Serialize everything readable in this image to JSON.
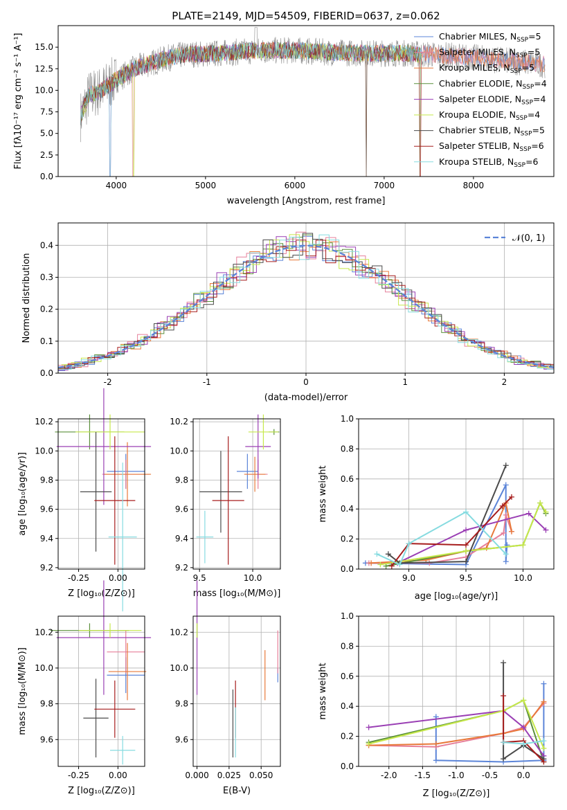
{
  "colors": [
    "#5b84d8",
    "#e67f9a",
    "#e8793a",
    "#5a8f3a",
    "#9a3fb4",
    "#c6e84a",
    "#4a4a4a",
    "#a61c1c",
    "#86dbe0"
  ],
  "chart_data": [
    {
      "id": "spectrum",
      "type": "line",
      "title": "PLATE=2149, MJD=54509, FIBERID=0637, z=0.062",
      "xlabel": "wavelength [Angstrom, rest frame]",
      "ylabel": "Flux [fλ10⁻¹⁷ erg cm⁻² s⁻¹ A⁻¹]",
      "xlim": [
        3350,
        8900
      ],
      "ylim": [
        0,
        17.5
      ],
      "xticks": [
        4000,
        5000,
        6000,
        7000,
        8000
      ],
      "yticks": [
        0.0,
        2.5,
        5.0,
        7.5,
        10.0,
        12.5,
        15.0
      ],
      "legend": "right",
      "continuum": {
        "x": [
          3600,
          3700,
          3800,
          3900,
          4000,
          4200,
          4400,
          4600,
          4800,
          5000,
          5300,
          5600,
          6000,
          6400,
          6800,
          7200,
          7600,
          8000,
          8400,
          8800
        ],
        "y": [
          7.0,
          9.5,
          9.8,
          10.5,
          11.2,
          12.5,
          13.2,
          13.8,
          14.2,
          14.2,
          14.4,
          14.6,
          14.6,
          14.4,
          14.3,
          14.3,
          14.1,
          13.8,
          13.4,
          13.0
        ]
      },
      "series": [
        {
          "name": "Chabrier MILES, N_SSP=5"
        },
        {
          "name": "Salpeter MILES, N_SSP=5"
        },
        {
          "name": "Kroupa MILES, N_SSP=5"
        },
        {
          "name": "Chabrier ELODIE, N_SSP=4"
        },
        {
          "name": "Salpeter ELODIE, N_SSP=4"
        },
        {
          "name": "Kroupa ELODIE, N_SSP=4"
        },
        {
          "name": "Chabrier STELIB, N_SSP=5"
        },
        {
          "name": "Salpeter STELIB, N_SSP=6"
        },
        {
          "name": "Kroupa STELIB, N_SSP=6"
        }
      ],
      "legend_entries": [
        {
          "pre": "Chabrier MILES, N",
          "sub": "SSP",
          "post": "=5"
        },
        {
          "pre": "Salpeter MILES, N",
          "sub": "SSP",
          "post": "=5"
        },
        {
          "pre": "Kroupa MILES, N",
          "sub": "SSP",
          "post": "=5"
        },
        {
          "pre": "Chabrier ELODIE, N",
          "sub": "SSP",
          "post": "=4"
        },
        {
          "pre": "Salpeter ELODIE, N",
          "sub": "SSP",
          "post": "=4"
        },
        {
          "pre": "Kroupa ELODIE, N",
          "sub": "SSP",
          "post": "=4"
        },
        {
          "pre": "Chabrier STELIB, N",
          "sub": "SSP",
          "post": "=5"
        },
        {
          "pre": "Salpeter STELIB, N",
          "sub": "SSP",
          "post": "=6"
        },
        {
          "pre": "Kroupa STELIB, N",
          "sub": "SSP",
          "post": "=6"
        }
      ]
    },
    {
      "id": "residuals",
      "type": "histogram",
      "xlabel": "(data-model)/error",
      "ylabel": "Normed distribution",
      "xlim": [
        -2.5,
        2.5
      ],
      "ylim": [
        0,
        0.47
      ],
      "xticks": [
        -2,
        -1,
        0,
        1,
        2
      ],
      "yticks": [
        0.0,
        0.1,
        0.2,
        0.3,
        0.4
      ],
      "bin_width": 0.1,
      "grid": true,
      "legend": "top-right",
      "reference": {
        "name": "𝒩(0, 1)",
        "type": "gaussian",
        "mu": 0,
        "sigma": 1
      }
    },
    {
      "id": "age-vs-Z",
      "type": "errorbar",
      "xlabel": "Z [log₁₀(Z/Z⊙)]",
      "ylabel": "age [log₁₀(age/yr)]",
      "xlim": [
        -0.38,
        0.17
      ],
      "ylim": [
        9.19,
        10.22
      ],
      "xticks": [
        -0.25,
        0.0
      ],
      "yticks": [
        9.2,
        9.4,
        9.6,
        9.8,
        10.0,
        10.2
      ],
      "grid": true,
      "points": [
        {
          "x": 0.05,
          "y": 9.86,
          "xerr": 0.12,
          "yerr": 0.12
        },
        {
          "x": 0.05,
          "y": 9.84,
          "xerr": 0.15,
          "yerr": 0.1
        },
        {
          "x": 0.06,
          "y": 9.84,
          "xerr": 0.15,
          "yerr": 0.22
        },
        {
          "x": -0.18,
          "y": 10.13,
          "xerr": 0.22,
          "yerr": 0.12
        },
        {
          "x": -0.09,
          "y": 10.03,
          "xerr": 0.3,
          "yerr": 0.4
        },
        {
          "x": -0.05,
          "y": 10.13,
          "xerr": 0.22,
          "yerr": 0.12
        },
        {
          "x": -0.14,
          "y": 9.72,
          "xerr": 0.1,
          "yerr": 0.41
        },
        {
          "x": -0.02,
          "y": 9.66,
          "xerr": 0.13,
          "yerr": 0.44
        },
        {
          "x": 0.03,
          "y": 9.41,
          "xerr": 0.09,
          "yerr": 0.51
        }
      ]
    },
    {
      "id": "age-vs-mass",
      "type": "errorbar",
      "xlabel": "mass [log₁₀(M/M⊙)]",
      "ylabel": "",
      "xlim": [
        9.44,
        10.26
      ],
      "ylim": [
        9.19,
        10.22
      ],
      "xticks": [
        9.5,
        10.0
      ],
      "yticks": [
        9.2,
        9.4,
        9.6,
        9.8,
        10.0,
        10.2
      ],
      "grid": true,
      "points": [
        {
          "x": 9.95,
          "y": 9.86,
          "xerr": 0.1,
          "yerr": 0.12
        },
        {
          "x": 10.05,
          "y": 9.84,
          "xerr": 0.09,
          "yerr": 0.1
        },
        {
          "x": 10.02,
          "y": 9.84,
          "xerr": 0.1,
          "yerr": 0.12
        },
        {
          "x": 10.2,
          "y": 10.13,
          "xerr": 0.05,
          "yerr": 0.02
        },
        {
          "x": 10.05,
          "y": 10.03,
          "xerr": 0.12,
          "yerr": 0.22
        },
        {
          "x": 10.1,
          "y": 10.13,
          "xerr": 0.14,
          "yerr": 0.12
        },
        {
          "x": 9.7,
          "y": 9.72,
          "xerr": 0.2,
          "yerr": 0.28
        },
        {
          "x": 9.77,
          "y": 9.66,
          "xerr": 0.15,
          "yerr": 0.44
        },
        {
          "x": 9.55,
          "y": 9.41,
          "xerr": 0.08,
          "yerr": 0.18
        }
      ]
    },
    {
      "id": "weight-vs-age",
      "type": "line",
      "xlabel": "age [log₁₀(age/yr)]",
      "ylabel": "mass weight",
      "xlim": [
        8.56,
        10.27
      ],
      "ylim": [
        0,
        1
      ],
      "xticks": [
        9.0,
        9.5,
        10.0
      ],
      "yticks": [
        0.0,
        0.2,
        0.4,
        0.6,
        0.8,
        1.0
      ],
      "grid": true,
      "series": [
        {
          "x": [
            8.62,
            9.5,
            9.85,
            9.85,
            9.86
          ],
          "y": [
            0.04,
            0.03,
            0.56,
            0.05,
            0.16
          ]
        },
        {
          "x": [
            8.65,
            9.18,
            9.5,
            9.83,
            9.85,
            9.9
          ],
          "y": [
            0.04,
            0.04,
            0.08,
            0.24,
            0.36,
            0.25
          ]
        },
        {
          "x": [
            8.67,
            9.15,
            9.5,
            9.68,
            9.85,
            9.9
          ],
          "y": [
            0.04,
            0.06,
            0.12,
            0.14,
            0.44,
            0.25
          ]
        },
        {
          "x": [
            8.8,
            9.5,
            10.0,
            10.15,
            10.2
          ],
          "y": [
            0.02,
            0.12,
            0.16,
            0.44,
            0.37
          ]
        },
        {
          "x": [
            8.9,
            9.5,
            10.05,
            10.2
          ],
          "y": [
            0.04,
            0.26,
            0.37,
            0.26
          ]
        },
        {
          "x": [
            8.75,
            9.5,
            10.0,
            10.15,
            10.2
          ],
          "y": [
            0.03,
            0.12,
            0.16,
            0.44,
            0.38
          ]
        },
        {
          "x": [
            8.82,
            8.92,
            9.5,
            9.85
          ],
          "y": [
            0.1,
            0.04,
            0.05,
            0.69
          ]
        },
        {
          "x": [
            8.85,
            9.0,
            9.5,
            9.82,
            9.9
          ],
          "y": [
            0.02,
            0.17,
            0.16,
            0.42,
            0.48
          ]
        },
        {
          "x": [
            8.72,
            8.92,
            9.0,
            9.5,
            9.85
          ],
          "y": [
            0.1,
            0.03,
            0.17,
            0.38,
            0.1
          ]
        }
      ]
    },
    {
      "id": "mass-vs-Z",
      "type": "errorbar",
      "xlabel": "Z [log₁₀(Z/Z⊙)]",
      "ylabel": "mass [log₁₀(M/M⊙)]",
      "xlim": [
        -0.38,
        0.17
      ],
      "ylim": [
        9.45,
        10.29
      ],
      "xticks": [
        -0.25,
        0.0
      ],
      "yticks": [
        9.6,
        9.8,
        10.0,
        10.2
      ],
      "grid": true,
      "points": [
        {
          "x": 0.05,
          "y": 9.96,
          "xerr": 0.12,
          "yerr": 0.1
        },
        {
          "x": 0.05,
          "y": 10.09,
          "xerr": 0.12,
          "yerr": 0.12
        },
        {
          "x": 0.06,
          "y": 9.98,
          "xerr": 0.12,
          "yerr": 0.16
        },
        {
          "x": -0.18,
          "y": 10.21,
          "xerr": 0.25,
          "yerr": 0.04
        },
        {
          "x": -0.09,
          "y": 10.17,
          "xerr": 0.3,
          "yerr": 0.32
        },
        {
          "x": -0.05,
          "y": 10.21,
          "xerr": 0.2,
          "yerr": 0.04
        },
        {
          "x": -0.14,
          "y": 9.72,
          "xerr": 0.08,
          "yerr": 0.22
        },
        {
          "x": -0.02,
          "y": 9.77,
          "xerr": 0.13,
          "yerr": 0.16
        },
        {
          "x": 0.03,
          "y": 9.54,
          "xerr": 0.08,
          "yerr": 0.08
        }
      ]
    },
    {
      "id": "mass-vs-EBV",
      "type": "errorbar",
      "xlabel": "E(B-V)",
      "ylabel": "",
      "xlim": [
        -0.003,
        0.065
      ],
      "ylim": [
        9.45,
        10.29
      ],
      "xticks": [
        0.0,
        0.025,
        0.05
      ],
      "yticks": [
        9.6,
        9.8,
        10.0,
        10.2
      ],
      "grid": true,
      "points": [
        {
          "x": 0.063,
          "y": 9.96,
          "xerr": 0,
          "yerr": 0.04
        },
        {
          "x": 0.063,
          "y": 10.09,
          "xerr": 0,
          "yerr": 0.12
        },
        {
          "x": 0.053,
          "y": 9.96,
          "xerr": 0,
          "yerr": 0.14
        },
        {
          "x": 0.0,
          "y": 10.21,
          "xerr": 0,
          "yerr": 0.04
        },
        {
          "x": 0.0,
          "y": 10.17,
          "xerr": 0,
          "yerr": 0.32
        },
        {
          "x": 0.0,
          "y": 10.21,
          "xerr": 0,
          "yerr": 0.04
        },
        {
          "x": 0.028,
          "y": 9.69,
          "xerr": 0,
          "yerr": 0.19
        },
        {
          "x": 0.03,
          "y": 9.77,
          "xerr": 0,
          "yerr": 0.16
        },
        {
          "x": 0.03,
          "y": 9.64,
          "xerr": 0,
          "yerr": 0.14
        }
      ]
    },
    {
      "id": "weight-vs-Z",
      "type": "line",
      "xlabel": "Z [log₁₀(Z/Z⊙)]",
      "ylabel": "mass weight",
      "xlim": [
        -2.45,
        0.45
      ],
      "ylim": [
        0,
        1
      ],
      "xticks": [
        -2.0,
        -1.5,
        -1.0,
        -0.5,
        0.0
      ],
      "yticks": [
        0.0,
        0.2,
        0.4,
        0.6,
        0.8,
        1.0
      ],
      "grid": true,
      "series": [
        {
          "x": [
            -1.3,
            -1.3,
            -0.3,
            0.3,
            0.3
          ],
          "y": [
            0.33,
            0.04,
            0.03,
            0.04,
            0.55
          ]
        },
        {
          "x": [
            -2.3,
            -1.3,
            -0.3,
            0.0,
            0.3
          ],
          "y": [
            0.14,
            0.13,
            0.22,
            0.26,
            0.42
          ]
        },
        {
          "x": [
            -2.3,
            -1.3,
            -0.3,
            0.0,
            0.3
          ],
          "y": [
            0.14,
            0.15,
            0.22,
            0.25,
            0.43
          ]
        },
        {
          "x": [
            -2.3,
            -0.3,
            0.0,
            0.3
          ],
          "y": [
            0.16,
            0.37,
            0.44,
            0.03
          ]
        },
        {
          "x": [
            -2.3,
            -0.3,
            0.0,
            0.3
          ],
          "y": [
            0.26,
            0.37,
            0.26,
            0.07
          ]
        },
        {
          "x": [
            -2.3,
            -0.3,
            0.0,
            0.3
          ],
          "y": [
            0.15,
            0.37,
            0.44,
            0.12
          ]
        },
        {
          "x": [
            -0.3,
            -0.3,
            0.0,
            0.3
          ],
          "y": [
            0.69,
            0.05,
            0.14,
            0.05
          ]
        },
        {
          "x": [
            -0.3,
            -0.3,
            0.0,
            0.3
          ],
          "y": [
            0.47,
            0.16,
            0.17,
            0.03
          ]
        },
        {
          "x": [
            -0.3,
            0.0,
            0.3
          ],
          "y": [
            0.16,
            0.15,
            0.17
          ]
        }
      ]
    }
  ]
}
